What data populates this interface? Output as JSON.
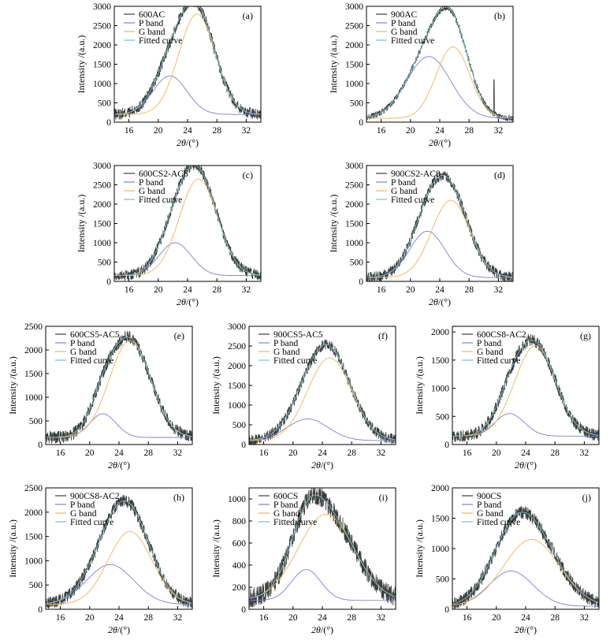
{
  "figure": {
    "xlabel": "2θ/(°)",
    "ylabel": "Intensity /(a.u.)",
    "legend_entries": [
      "P band",
      "G band",
      "Fitted curve"
    ]
  },
  "colors": {
    "raw": "#3c3c3c",
    "p_band": "#7c80d6",
    "g_band": "#f2b450",
    "fitted": "#6cc6c8"
  },
  "chart_data": [
    {
      "id": "a",
      "type": "line",
      "letter": "(a)",
      "sample": "600AC",
      "xlabel": "2θ/(°)",
      "ylabel": "Intensity /(a.u.)",
      "xlim": [
        14,
        34
      ],
      "ylim": [
        0,
        3000
      ],
      "xticks": [
        16,
        20,
        24,
        28,
        32
      ],
      "yticks": [
        0,
        500,
        1000,
        1500,
        2000,
        2500,
        3000
      ],
      "baseline": 200,
      "noise": 150,
      "p_band": {
        "center": 21.6,
        "height": 1000,
        "width": 2.3
      },
      "g_band": {
        "center": 25.3,
        "height": 2600,
        "width": 2.5
      },
      "series": [
        {
          "name": "600AC"
        },
        {
          "name": "P band"
        },
        {
          "name": "G band"
        },
        {
          "name": "Fitted curve"
        }
      ]
    },
    {
      "id": "b",
      "type": "line",
      "letter": "(b)",
      "sample": "900AC",
      "xlabel": "2θ/(°)",
      "ylabel": "Intensity /(a.u.)",
      "xlim": [
        14,
        34
      ],
      "ylim": [
        0,
        3000
      ],
      "xticks": [
        16,
        20,
        24,
        28,
        32
      ],
      "yticks": [
        0,
        500,
        1000,
        1500,
        2000,
        2500,
        3000
      ],
      "baseline": 100,
      "noise": 80,
      "p_band": {
        "center": 22.5,
        "height": 1600,
        "width": 3.0
      },
      "g_band": {
        "center": 25.8,
        "height": 1850,
        "width": 2.3
      },
      "spike": {
        "center": 31.4,
        "height": 1000
      },
      "series": [
        {
          "name": "900AC"
        },
        {
          "name": "P band"
        },
        {
          "name": "G band"
        },
        {
          "name": "Fitted curve"
        }
      ]
    },
    {
      "id": "c",
      "type": "line",
      "letter": "(c)",
      "sample": "600CS2-AC8",
      "xlabel": "2θ/(°)",
      "ylabel": "Intensity /(a.u.)",
      "xlim": [
        14,
        34
      ],
      "ylim": [
        0,
        3000
      ],
      "xticks": [
        16,
        20,
        24,
        28,
        32
      ],
      "yticks": [
        0,
        500,
        1000,
        1500,
        2000,
        2500,
        3000
      ],
      "baseline": 150,
      "noise": 140,
      "p_band": {
        "center": 22.3,
        "height": 850,
        "width": 2.2
      },
      "g_band": {
        "center": 25.5,
        "height": 2500,
        "width": 2.6
      },
      "series": [
        {
          "name": "600CS2-AC8"
        },
        {
          "name": "P band"
        },
        {
          "name": "G band"
        },
        {
          "name": "Fitted curve"
        }
      ]
    },
    {
      "id": "d",
      "type": "line",
      "letter": "(d)",
      "sample": "900CS2-AC8",
      "xlabel": "2θ/(°)",
      "ylabel": "Intensity /(a.u.)",
      "xlim": [
        14,
        34
      ],
      "ylim": [
        0,
        3000
      ],
      "xticks": [
        16,
        20,
        24,
        28,
        32
      ],
      "yticks": [
        0,
        500,
        1000,
        1500,
        2000,
        2500,
        3000
      ],
      "baseline": 100,
      "noise": 140,
      "p_band": {
        "center": 22.3,
        "height": 1200,
        "width": 2.4
      },
      "g_band": {
        "center": 25.5,
        "height": 2000,
        "width": 2.6
      },
      "series": [
        {
          "name": "900CS2-AC8"
        },
        {
          "name": "P band"
        },
        {
          "name": "G band"
        },
        {
          "name": "Fitted curve"
        }
      ]
    },
    {
      "id": "e",
      "type": "line",
      "letter": "(e)",
      "sample": "600CS5-AC5",
      "xlabel": "2θ/(°)",
      "ylabel": "Intensity /(a.u.)",
      "xlim": [
        14,
        34
      ],
      "ylim": [
        0,
        2500
      ],
      "xticks": [
        16,
        20,
        24,
        28,
        32
      ],
      "yticks": [
        0,
        500,
        1000,
        1500,
        2000,
        2500
      ],
      "baseline": 150,
      "noise": 130,
      "p_band": {
        "center": 21.8,
        "height": 500,
        "width": 1.8
      },
      "g_band": {
        "center": 25.5,
        "height": 2050,
        "width": 2.8
      },
      "series": [
        {
          "name": "600CS5-AC5"
        },
        {
          "name": "P band"
        },
        {
          "name": "G band"
        },
        {
          "name": "Fitted curve"
        }
      ]
    },
    {
      "id": "f",
      "type": "line",
      "letter": "(f)",
      "sample": "900CS5-AC5",
      "xlabel": "2θ/(°)",
      "ylabel": "Intensity /(a.u.)",
      "xlim": [
        14,
        34
      ],
      "ylim": [
        0,
        3000
      ],
      "xticks": [
        16,
        20,
        24,
        28,
        32
      ],
      "yticks": [
        0,
        500,
        1000,
        1500,
        2000,
        2500,
        3000
      ],
      "baseline": 100,
      "noise": 140,
      "p_band": {
        "center": 22.0,
        "height": 550,
        "width": 2.8
      },
      "g_band": {
        "center": 25.0,
        "height": 2100,
        "width": 3.0
      },
      "series": [
        {
          "name": "900CS5-AC5"
        },
        {
          "name": "P band"
        },
        {
          "name": "G band"
        },
        {
          "name": "Fitted curve"
        }
      ]
    },
    {
      "id": "g",
      "type": "line",
      "letter": "(g)",
      "sample": "600CS8-AC2",
      "xlabel": "2θ/(°)",
      "ylabel": "Intensity /(a.u.)",
      "xlim": [
        14,
        34
      ],
      "ylim": [
        0,
        2100
      ],
      "xticks": [
        16,
        20,
        24,
        28,
        32
      ],
      "yticks": [
        0,
        500,
        1000,
        1500,
        2000
      ],
      "baseline": 150,
      "noise": 110,
      "p_band": {
        "center": 21.8,
        "height": 400,
        "width": 2.0
      },
      "g_band": {
        "center": 25.3,
        "height": 1600,
        "width": 2.8
      },
      "series": [
        {
          "name": "600CS8-AC2"
        },
        {
          "name": "P band"
        },
        {
          "name": "G band"
        },
        {
          "name": "Fitted curve"
        }
      ]
    },
    {
      "id": "h",
      "type": "line",
      "letter": "(h)",
      "sample": "900CS8-AC2",
      "xlabel": "2θ/(°)",
      "ylabel": "Intensity /(a.u.)",
      "xlim": [
        14,
        34
      ],
      "ylim": [
        0,
        2500
      ],
      "xticks": [
        16,
        20,
        24,
        28,
        32
      ],
      "yticks": [
        0,
        500,
        1000,
        1500,
        2000,
        2500
      ],
      "baseline": 100,
      "noise": 130,
      "p_band": {
        "center": 22.8,
        "height": 820,
        "width": 3.2
      },
      "g_band": {
        "center": 25.5,
        "height": 1500,
        "width": 3.0
      },
      "series": [
        {
          "name": "900CS8-AC2"
        },
        {
          "name": "P band"
        },
        {
          "name": "G band"
        },
        {
          "name": "Fitted curve"
        }
      ]
    },
    {
      "id": "i",
      "type": "line",
      "letter": "(i)",
      "sample": "600CS",
      "xlabel": "2θ/(°)",
      "ylabel": "Intensity /(a.u.)",
      "xlim": [
        14,
        34
      ],
      "ylim": [
        0,
        1100
      ],
      "xticks": [
        16,
        20,
        24,
        28,
        32
      ],
      "yticks": [
        0,
        200,
        400,
        600,
        800,
        1000
      ],
      "baseline": 80,
      "noise": 90,
      "p_band": {
        "center": 21.8,
        "height": 280,
        "width": 2.0
      },
      "g_band": {
        "center": 24.5,
        "height": 780,
        "width": 3.8
      },
      "series": [
        {
          "name": "600CS"
        },
        {
          "name": "P band"
        },
        {
          "name": "G band"
        },
        {
          "name": "Fitted curve"
        }
      ]
    },
    {
      "id": "j",
      "type": "line",
      "letter": "(j)",
      "sample": "900CS",
      "xlabel": "2θ/(°)",
      "ylabel": "Intensity /(a.u.)",
      "xlim": [
        14,
        34
      ],
      "ylim": [
        0,
        2000
      ],
      "xticks": [
        16,
        20,
        24,
        28,
        32
      ],
      "yticks": [
        0,
        500,
        1000,
        1500,
        2000
      ],
      "baseline": 50,
      "noise": 110,
      "p_band": {
        "center": 22.0,
        "height": 580,
        "width": 3.0
      },
      "g_band": {
        "center": 24.8,
        "height": 1100,
        "width": 3.8
      },
      "series": [
        {
          "name": "900CS"
        },
        {
          "name": "P band"
        },
        {
          "name": "G band"
        },
        {
          "name": "Fitted curve"
        }
      ]
    }
  ]
}
